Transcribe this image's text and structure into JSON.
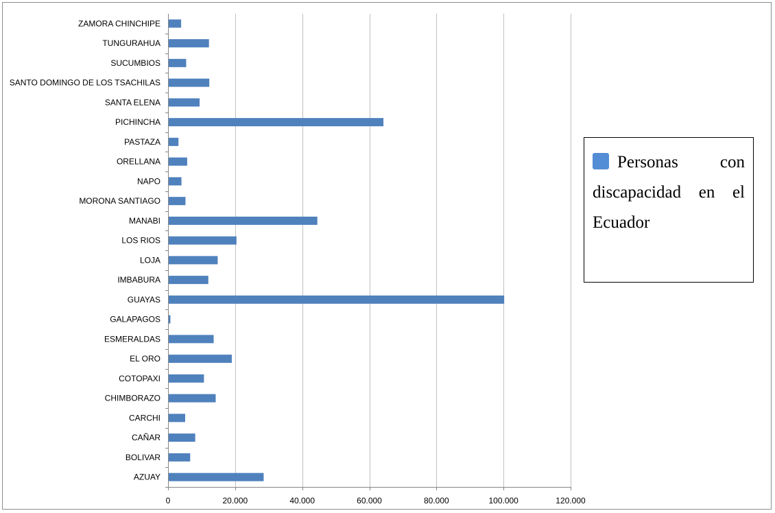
{
  "colors": {
    "bar": "#4f81bd",
    "swatch": "#538dd5",
    "grid": "#c0c0c0",
    "axis": "#868686"
  },
  "legend": {
    "placement": "right",
    "text": "Personas con discapacidad en el Ecuador"
  },
  "chart_data": {
    "type": "bar",
    "orientation": "horizontal",
    "title": "",
    "xlabel": "",
    "ylabel": "",
    "xlim": [
      0,
      120000
    ],
    "grid": true,
    "x_tick_values": [
      0,
      20000,
      40000,
      60000,
      80000,
      100000,
      120000
    ],
    "x_tick_labels": [
      "0",
      "20.000",
      "40.000",
      "60.000",
      "80.000",
      "100.000",
      "120.000"
    ],
    "categories": [
      "AZUAY",
      "BOLIVAR",
      "CAÑAR",
      "CARCHI",
      "CHIMBORAZO",
      "COTOPAXI",
      "EL ORO",
      "ESMERALDAS",
      "GALAPAGOS",
      "GUAYAS",
      "IMBABURA",
      "LOJA",
      "LOS RIOS",
      "MANABI",
      "MORONA SANTIAGO",
      "NAPO",
      "ORELLANA",
      "PASTAZA",
      "PICHINCHA",
      "SANTA ELENA",
      "SANTO DOMINGO DE LOS TSACHILAS",
      "SUCUMBIOS",
      "TUNGURAHUA",
      "ZAMORA CHINCHIPE"
    ],
    "series": [
      {
        "name": "Personas con discapacidad en el Ecuador",
        "values": [
          28300,
          6400,
          7900,
          4900,
          14000,
          10500,
          18800,
          13400,
          500,
          100000,
          11800,
          14600,
          20200,
          44300,
          5000,
          3800,
          5500,
          2900,
          64000,
          9200,
          12100,
          5200,
          12000,
          3700
        ]
      }
    ]
  }
}
